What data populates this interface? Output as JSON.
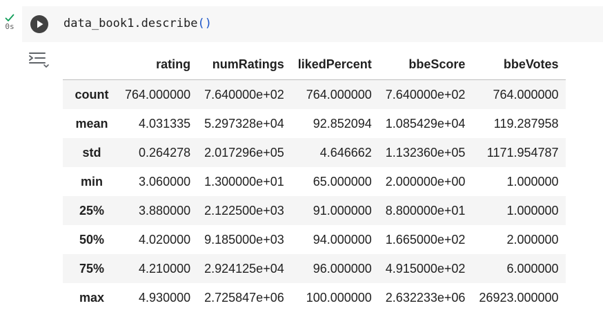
{
  "cell": {
    "status_icon": "check-icon",
    "status_color": "#0f9d58",
    "exec_time": "0s",
    "code": {
      "object": "data_book1",
      "method": ".describe",
      "open_paren": "(",
      "close_paren": ")"
    }
  },
  "output": {
    "toggle_icon": "output-toggle-icon",
    "table": {
      "columns": [
        "",
        "rating",
        "numRatings",
        "likedPercent",
        "bbeScore",
        "bbeVotes"
      ],
      "rows": [
        {
          "label": "count",
          "values": [
            "764.000000",
            "7.640000e+02",
            "764.000000",
            "7.640000e+02",
            "764.000000"
          ]
        },
        {
          "label": "mean",
          "values": [
            "4.031335",
            "5.297328e+04",
            "92.852094",
            "1.085429e+04",
            "119.287958"
          ]
        },
        {
          "label": "std",
          "values": [
            "0.264278",
            "2.017296e+05",
            "4.646662",
            "1.132360e+05",
            "1171.954787"
          ]
        },
        {
          "label": "min",
          "values": [
            "3.060000",
            "1.300000e+01",
            "65.000000",
            "2.000000e+00",
            "1.000000"
          ]
        },
        {
          "label": "25%",
          "values": [
            "3.880000",
            "2.122500e+03",
            "91.000000",
            "8.800000e+01",
            "1.000000"
          ]
        },
        {
          "label": "50%",
          "values": [
            "4.020000",
            "9.185000e+03",
            "94.000000",
            "1.665000e+02",
            "2.000000"
          ]
        },
        {
          "label": "75%",
          "values": [
            "4.210000",
            "2.924125e+04",
            "96.000000",
            "4.915000e+02",
            "6.000000"
          ]
        },
        {
          "label": "max",
          "values": [
            "4.930000",
            "2.725847e+06",
            "100.000000",
            "2.632233e+06",
            "26923.000000"
          ]
        }
      ]
    }
  }
}
